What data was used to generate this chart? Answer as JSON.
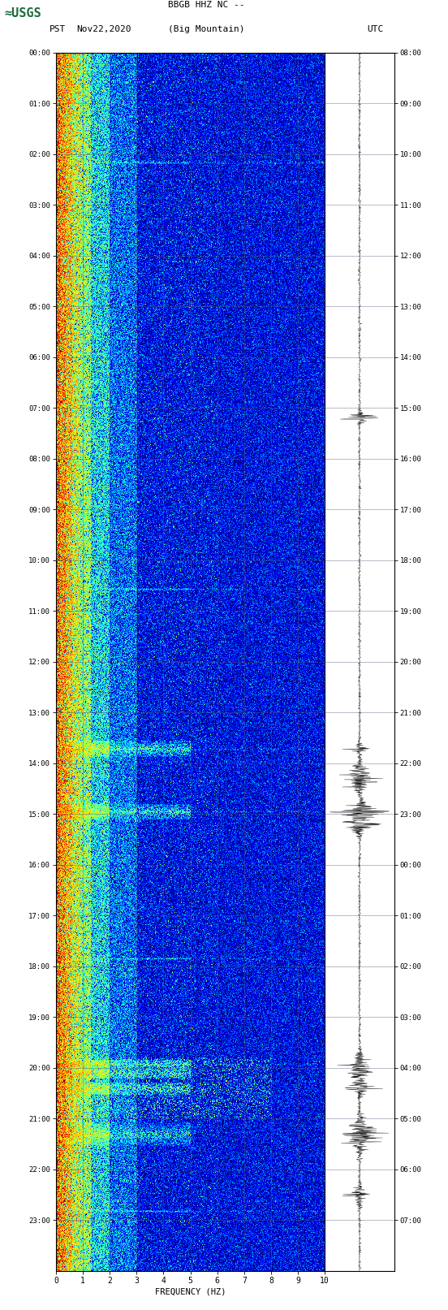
{
  "title_line1": "BBGB HHZ NC --",
  "title_line2": "(Big Mountain)",
  "left_label": "PST",
  "date_label": "Nov22,2020",
  "right_label": "UTC",
  "xlabel": "FREQUENCY (HZ)",
  "freq_min": 0,
  "freq_max": 10,
  "freq_ticks": [
    0,
    1,
    2,
    3,
    4,
    5,
    6,
    7,
    8,
    9,
    10
  ],
  "pst_times": [
    "00:00",
    "01:00",
    "02:00",
    "03:00",
    "04:00",
    "05:00",
    "06:00",
    "07:00",
    "08:00",
    "09:00",
    "10:00",
    "11:00",
    "12:00",
    "13:00",
    "14:00",
    "15:00",
    "16:00",
    "17:00",
    "18:00",
    "19:00",
    "20:00",
    "21:00",
    "22:00",
    "23:00"
  ],
  "utc_times": [
    "08:00",
    "09:00",
    "10:00",
    "11:00",
    "12:00",
    "13:00",
    "14:00",
    "15:00",
    "16:00",
    "17:00",
    "18:00",
    "19:00",
    "20:00",
    "21:00",
    "22:00",
    "23:00",
    "00:00",
    "01:00",
    "02:00",
    "03:00",
    "04:00",
    "05:00",
    "06:00",
    "07:00"
  ],
  "colormap": "jet",
  "fig_width": 5.52,
  "fig_height": 16.13,
  "dpi": 100,
  "usgs_color": "#1a6b3c",
  "noise_seed": 42,
  "waveform_color": "#000000",
  "panel_bg": "#ffffff",
  "grid_color": "#555577",
  "bright_lines_pst": [
    2.18,
    10.57,
    13.72,
    14.95,
    17.85,
    19.92,
    22.82
  ],
  "event_bursts_pst": [
    13.72,
    14.95,
    19.92,
    20.1,
    20.4,
    21.3
  ],
  "wave_events_pst": [
    7.2,
    13.72,
    14.3,
    14.95,
    15.2,
    19.92,
    20.1,
    20.4,
    21.3,
    22.5
  ]
}
